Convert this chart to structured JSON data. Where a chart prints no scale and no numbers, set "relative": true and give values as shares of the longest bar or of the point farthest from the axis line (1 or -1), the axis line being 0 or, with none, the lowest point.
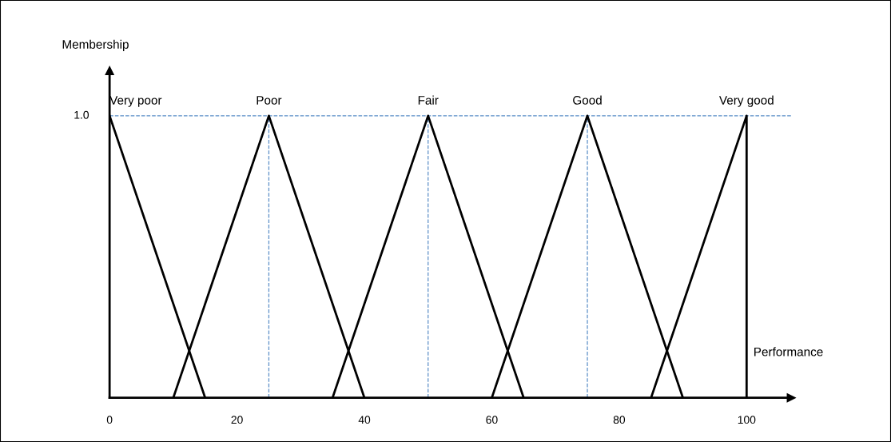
{
  "chart_data": {
    "type": "line",
    "xlabel": "Performance",
    "relative": true,
    "legend": false,
    "grid": false,
    "marker": "none",
    "line_style": "solid",
    "xlim": [
      0,
      107
    ],
    "xticks": [
      0,
      20,
      40,
      60,
      80,
      100
    ],
    "series": [
      {
        "color": "#000000",
        "x": [
          0,
          15
        ],
        "values": [
          1,
          0
        ]
      },
      {
        "color": "#000000",
        "x": [
          10,
          25,
          40
        ],
        "values": [
          0,
          1,
          0
        ]
      },
      {
        "color": "#000000",
        "x": [
          35,
          50,
          65
        ],
        "values": [
          0,
          1,
          0
        ]
      },
      {
        "color": "#000000",
        "x": [
          60,
          75,
          90
        ],
        "values": [
          0,
          1,
          0
        ]
      },
      {
        "color": "#000000",
        "x": [
          85,
          100,
          100
        ],
        "values": [
          0,
          1,
          0
        ]
      }
    ],
    "annotations": [
      "Membership",
      {
        "text": "Very poor",
        "x": 0,
        "y": 1
      },
      {
        "text": "Poor",
        "x": 25,
        "y": 1
      },
      {
        "text": "Fair",
        "x": 50,
        "y": 1
      },
      {
        "text": "Good",
        "x": 75,
        "y": 1
      },
      {
        "text": "Very good",
        "x": 100,
        "y": 1
      }
    ],
    "ref_lines": [
      {
        "axis": "y",
        "value": 1,
        "label": "1.0",
        "color": "#5b8fc7",
        "line_style": "dashed"
      },
      {
        "axis": "x",
        "value": 25,
        "color": "#5b8fc7",
        "line_style": "dashed"
      },
      {
        "axis": "x",
        "value": 50,
        "color": "#5b8fc7",
        "line_style": "dashed"
      },
      {
        "axis": "x",
        "value": 75,
        "color": "#5b8fc7",
        "line_style": "dashed"
      }
    ]
  }
}
